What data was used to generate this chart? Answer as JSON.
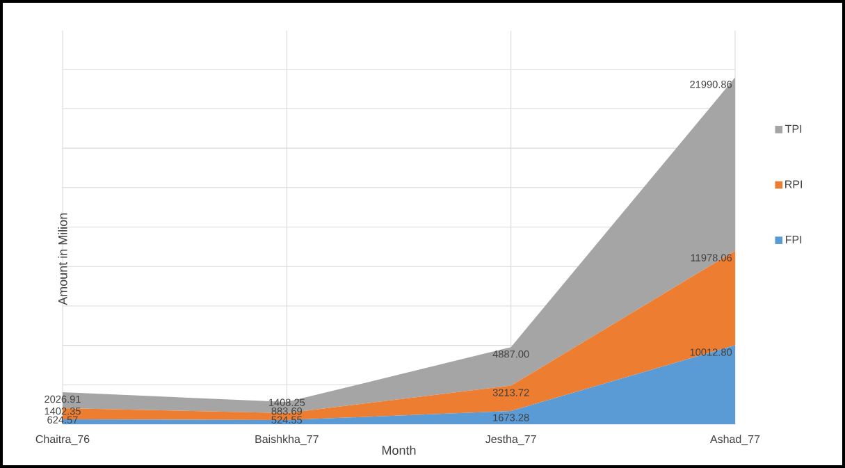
{
  "chart_data": {
    "type": "area",
    "stacked": true,
    "xlabel": "Month",
    "ylabel": "Amount in Milion",
    "categories": [
      "Chaitra_76",
      "Baishkha_77",
      "Jestha_77",
      "Ashad_77"
    ],
    "series": [
      {
        "name": "FPI",
        "color": "#5b9bd5",
        "values": [
          624.57,
          524.55,
          1673.28,
          10012.8
        ],
        "value_labels": [
          "624.57",
          "524.55",
          "1673.28",
          "10012.80"
        ]
      },
      {
        "name": "RPI",
        "color": "#ed7d31",
        "values": [
          1402.35,
          883.69,
          3213.72,
          11978.06
        ],
        "value_labels": [
          "1402.35",
          "883.69",
          "3213.72",
          "11978.06"
        ]
      },
      {
        "name": "TPI",
        "color": "#a5a5a5",
        "values": [
          2026.91,
          1408.25,
          4887.0,
          21990.86
        ],
        "value_labels": [
          "2026.91",
          "1408.25",
          "4887.00",
          "21990.86"
        ]
      }
    ],
    "tick_labels": "x",
    "grid": true,
    "legend": "right"
  }
}
